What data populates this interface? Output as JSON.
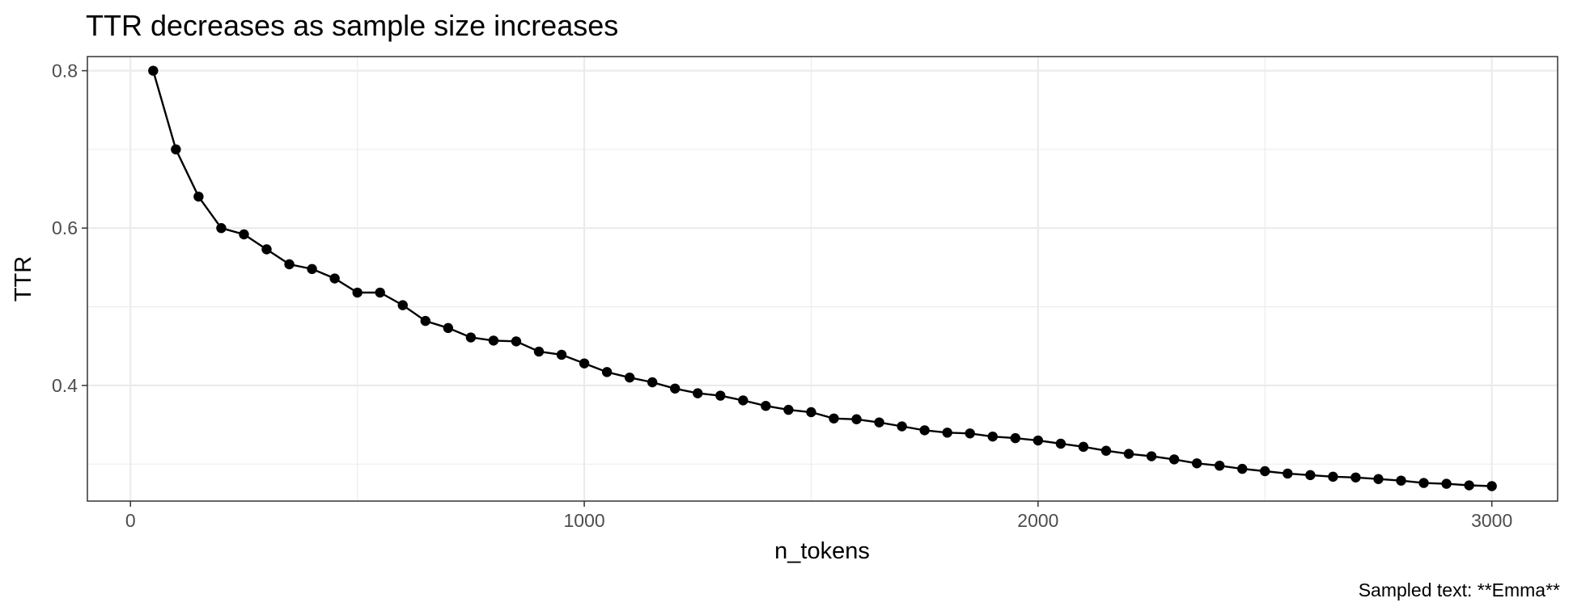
{
  "chart_data": {
    "type": "line",
    "title": "TTR decreases as sample size increases",
    "xlabel": "n_tokens",
    "ylabel": "TTR",
    "caption": "Sampled text: **Emma**",
    "xlim": [
      -95,
      3145
    ],
    "ylim": [
      0.253,
      0.818
    ],
    "x_major_ticks": [
      0,
      1000,
      2000,
      3000
    ],
    "x_tick_labels": [
      "0",
      "1000",
      "2000",
      "3000"
    ],
    "x_minor_ticks": [
      500,
      1500,
      2500
    ],
    "y_major_ticks": [
      0.4,
      0.6,
      0.8
    ],
    "y_tick_labels": [
      "0.4",
      "0.6",
      "0.8"
    ],
    "y_minor_ticks": [
      0.3,
      0.5,
      0.7
    ],
    "grid": true,
    "legend": "none",
    "colors": {
      "series": "#000000",
      "grid": "#ebebeb",
      "border": "#333333"
    },
    "x": [
      50,
      100,
      150,
      200,
      250,
      300,
      350,
      400,
      450,
      500,
      550,
      600,
      650,
      700,
      750,
      800,
      850,
      900,
      950,
      1000,
      1050,
      1100,
      1150,
      1200,
      1250,
      1300,
      1350,
      1400,
      1450,
      1500,
      1550,
      1600,
      1650,
      1700,
      1750,
      1800,
      1850,
      1900,
      1950,
      2000,
      2050,
      2100,
      2150,
      2200,
      2250,
      2300,
      2350,
      2400,
      2450,
      2500,
      2550,
      2600,
      2650,
      2700,
      2750,
      2800,
      2850,
      2900,
      2950,
      3000
    ],
    "y": [
      0.8,
      0.7,
      0.64,
      0.6,
      0.592,
      0.573,
      0.554,
      0.548,
      0.536,
      0.518,
      0.518,
      0.502,
      0.482,
      0.473,
      0.461,
      0.457,
      0.456,
      0.443,
      0.439,
      0.428,
      0.417,
      0.41,
      0.404,
      0.396,
      0.39,
      0.387,
      0.381,
      0.374,
      0.369,
      0.366,
      0.358,
      0.357,
      0.353,
      0.348,
      0.343,
      0.34,
      0.339,
      0.335,
      0.333,
      0.33,
      0.326,
      0.322,
      0.317,
      0.313,
      0.31,
      0.306,
      0.301,
      0.298,
      0.294,
      0.291,
      0.288,
      0.286,
      0.284,
      0.283,
      0.281,
      0.279,
      0.276,
      0.275,
      0.273,
      0.272
    ]
  }
}
